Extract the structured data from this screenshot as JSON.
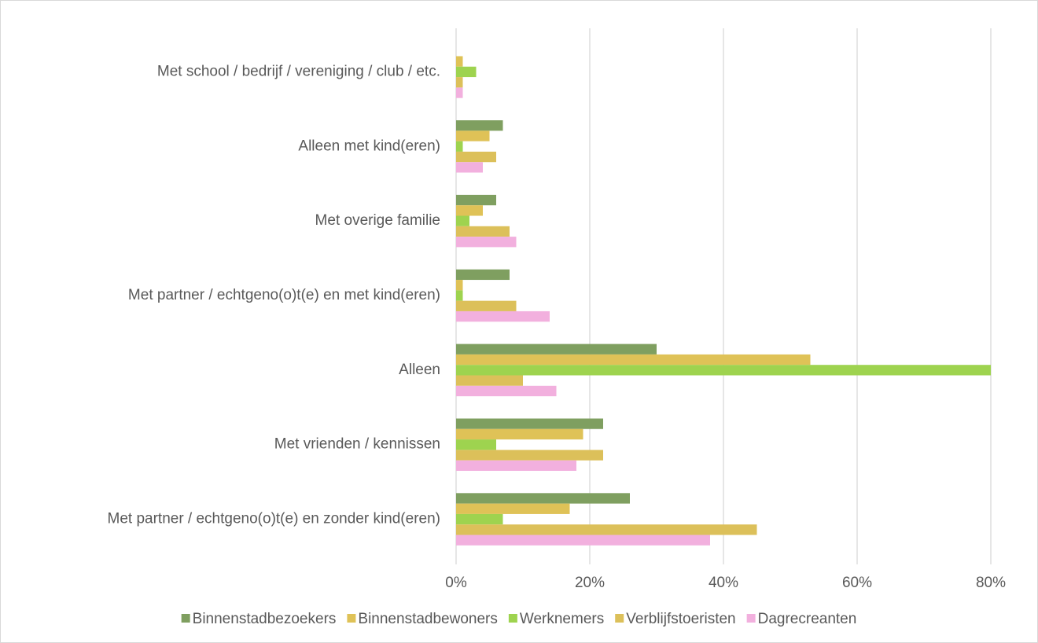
{
  "chart_data": {
    "type": "hbar",
    "categories": [
      "Met school / bedrijf / vereniging / club / etc.",
      "Alleen met kind(eren)",
      "Met overige familie",
      "Met partner / echtgeno(o)t(e) en met kind(eren)",
      "Alleen",
      "Met vrienden / kennissen",
      "Met partner / echtgeno(o)t(e) en zonder kind(eren)"
    ],
    "series": [
      {
        "name": "Binnenstadbezoekers",
        "color": "#7f9f60",
        "values": [
          0,
          7,
          6,
          8,
          30,
          22,
          26
        ]
      },
      {
        "name": "Binnenstadbewoners",
        "color": "#dfc257",
        "values": [
          1,
          5,
          4,
          1,
          53,
          19,
          17
        ]
      },
      {
        "name": "Werknemers",
        "color": "#9ed34f",
        "values": [
          3,
          1,
          2,
          1,
          80,
          6,
          7
        ]
      },
      {
        "name": "Verblijfstoeristen",
        "color": "#dcc05a",
        "values": [
          1,
          6,
          8,
          9,
          10,
          22,
          45
        ]
      },
      {
        "name": "Dagrecreanten",
        "color": "#f2b0de",
        "values": [
          1,
          4,
          9,
          14,
          15,
          18,
          38
        ]
      }
    ],
    "xlim": [
      0,
      80
    ],
    "xticks": [
      {
        "value": 0,
        "label": "0%"
      },
      {
        "value": 20,
        "label": "20%"
      },
      {
        "value": 40,
        "label": "40%"
      },
      {
        "value": 60,
        "label": "60%"
      },
      {
        "value": 80,
        "label": "80%"
      }
    ],
    "grid": true,
    "legend": "bottom"
  }
}
